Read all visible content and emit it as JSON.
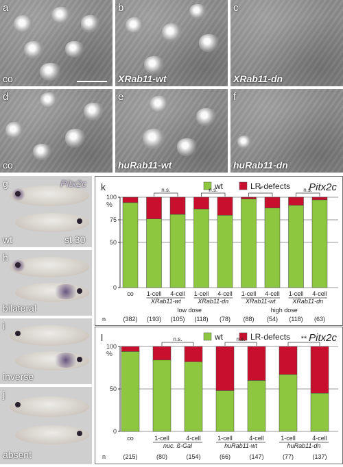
{
  "sem_panels": [
    {
      "letter": "a",
      "label": "co",
      "italic": false
    },
    {
      "letter": "b",
      "label": "XRab11-wt",
      "italic": true
    },
    {
      "letter": "c",
      "label": "XRab11-dn",
      "italic": true
    },
    {
      "letter": "d",
      "label": "co",
      "italic": false
    },
    {
      "letter": "e",
      "label": "huRab11-wt",
      "italic": true
    },
    {
      "letter": "f",
      "label": "huRab11-dn",
      "italic": true
    }
  ],
  "embryo_panels": [
    {
      "letter": "g",
      "label": "wt",
      "gene": "Pitx2c",
      "stage": "st.30"
    },
    {
      "letter": "h",
      "label": "bilateral"
    },
    {
      "letter": "i",
      "label": "inverse"
    },
    {
      "letter": "j",
      "label": "absent"
    }
  ],
  "chart_data": [
    {
      "panel": "k",
      "type": "bar",
      "gene": "Pitx2c",
      "legend": [
        "wt",
        "LR-defects"
      ],
      "colors": {
        "wt": "#8dc63f",
        "defect": "#c8102e"
      },
      "ylabel": "%",
      "yticks": [
        "100",
        "75",
        "50",
        "0"
      ],
      "ylim": [
        0,
        100
      ],
      "bars": [
        {
          "cat": "co",
          "wt": 94,
          "n": "(382)"
        },
        {
          "cat": "1-cell",
          "wt": 76,
          "n": "(193)"
        },
        {
          "cat": "4-cell",
          "wt": 81,
          "n": "(105)"
        },
        {
          "cat": "1-cell",
          "wt": 87,
          "n": "(118)"
        },
        {
          "cat": "4-cell",
          "wt": 80,
          "n": "(78)"
        },
        {
          "cat": "1-cell",
          "wt": 98,
          "n": "(88)"
        },
        {
          "cat": "4-cell",
          "wt": 88,
          "n": "(54)"
        },
        {
          "cat": "1-cell",
          "wt": 91,
          "n": "(118)"
        },
        {
          "cat": "4-cell",
          "wt": 97,
          "n": "(63)"
        }
      ],
      "groups": [
        {
          "label": "XRab11-wt",
          "from": 1,
          "to": 2
        },
        {
          "label": "XRab11-dn",
          "from": 3,
          "to": 4
        },
        {
          "label": "XRab11-wt",
          "from": 5,
          "to": 6
        },
        {
          "label": "XRab11-dn",
          "from": 7,
          "to": 8
        }
      ],
      "dose_labels": [
        {
          "label": "low dose",
          "from": 1,
          "to": 4
        },
        {
          "label": "high dose",
          "from": 5,
          "to": 8
        }
      ],
      "significance": [
        {
          "label": "n.s.",
          "from": 1,
          "to": 2
        },
        {
          "label": "n.s.",
          "from": 3,
          "to": 4
        },
        {
          "label": "*",
          "from": 5,
          "to": 6
        },
        {
          "label": "n.s.",
          "from": 7,
          "to": 8
        }
      ],
      "n_label": "n"
    },
    {
      "panel": "l",
      "type": "bar",
      "gene": "Pitx2c",
      "legend": [
        "wt",
        "LR-defects"
      ],
      "colors": {
        "wt": "#8dc63f",
        "defect": "#c8102e"
      },
      "ylabel": "%",
      "yticks": [
        "100",
        "50",
        "0"
      ],
      "ylim": [
        0,
        100
      ],
      "bars": [
        {
          "cat": "co",
          "wt": 94,
          "n": "(215)"
        },
        {
          "cat": "1-cell",
          "wt": 84,
          "n": "(80)"
        },
        {
          "cat": "4-cell",
          "wt": 82,
          "n": "(154)"
        },
        {
          "cat": "1-cell",
          "wt": 48,
          "n": "(66)"
        },
        {
          "cat": "4-cell",
          "wt": 60,
          "n": "(147)"
        },
        {
          "cat": "1-cell",
          "wt": 67,
          "n": "(77)"
        },
        {
          "cat": "4-cell",
          "wt": 45,
          "n": "(137)"
        }
      ],
      "groups": [
        {
          "label": "nuc. ß-Gal",
          "from": 1,
          "to": 2
        },
        {
          "label": "huRab11-wt",
          "from": 3,
          "to": 4
        },
        {
          "label": "huRab11-dn",
          "from": 5,
          "to": 6
        }
      ],
      "dose_labels": [],
      "significance": [
        {
          "label": "n.s.",
          "from": 1,
          "to": 2
        },
        {
          "label": "n.s.",
          "from": 3,
          "to": 4
        },
        {
          "label": "**",
          "from": 5,
          "to": 6
        }
      ],
      "n_label": "n"
    }
  ]
}
